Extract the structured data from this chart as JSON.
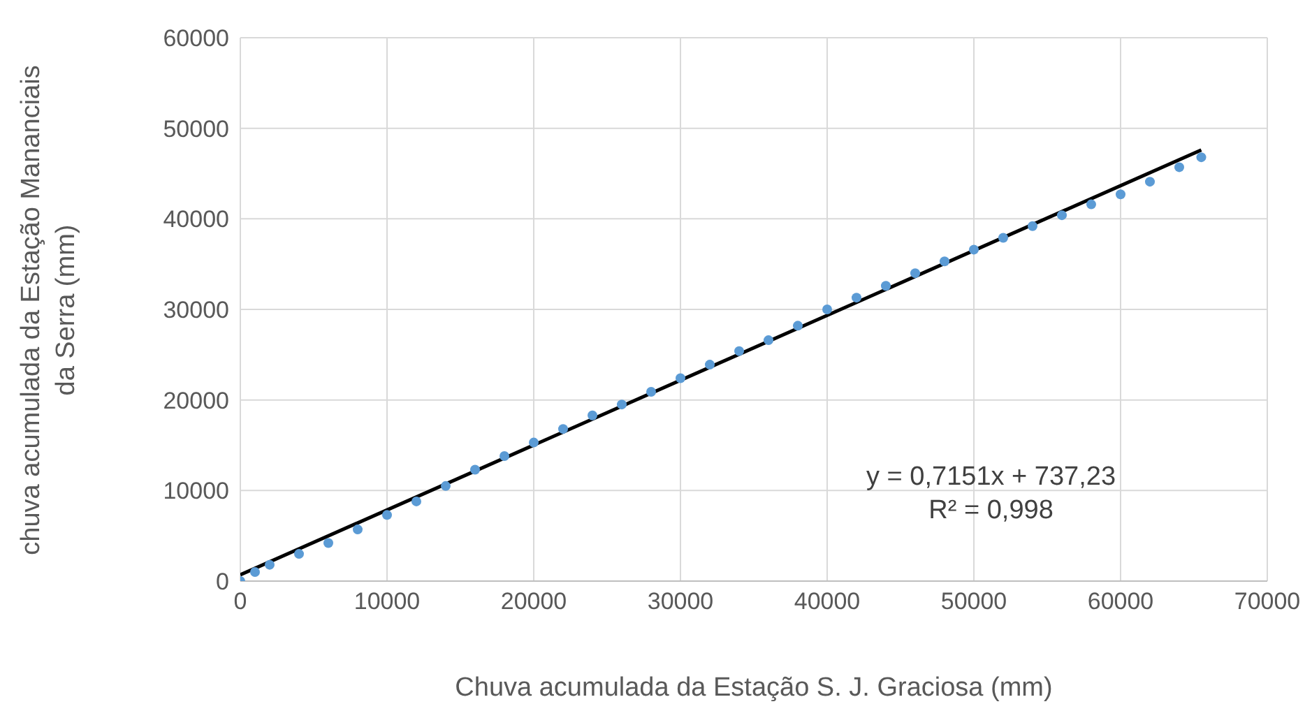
{
  "chart_data": {
    "type": "scatter",
    "xlabel": "Chuva acumulada da Estação S. J. Graciosa (mm)",
    "ylabel": "chuva acumulada da Estação Mananciais da Serra (mm)",
    "annotations": [
      "y = 0,7151x + 737,23",
      "R² = 0,998"
    ],
    "x": [
      0,
      1000,
      2000,
      4000,
      6000,
      8000,
      10000,
      12000,
      14000,
      16000,
      18000,
      20000,
      22000,
      24000,
      26000,
      28000,
      30000,
      32000,
      34000,
      36000,
      38000,
      40000,
      42000,
      44000,
      46000,
      48000,
      50000,
      52000,
      54000,
      56000,
      58000,
      60000,
      62000,
      64000,
      65500
    ],
    "series": [
      {
        "color": "#5b9bd5",
        "marker": "circle",
        "values": [
          0,
          1000,
          1800,
          3000,
          4200,
          5700,
          7300,
          8800,
          10500,
          12300,
          13800,
          15300,
          16800,
          18300,
          19500,
          20900,
          22400,
          23900,
          25400,
          26600,
          28200,
          30000,
          31300,
          32600,
          34000,
          35300,
          36600,
          37900,
          39200,
          40400,
          41600,
          42700,
          44100,
          45700,
          46800
        ]
      },
      {
        "type": "line",
        "color": "#000000",
        "marker": "none",
        "x": [
          0,
          65500
        ],
        "values": [
          700,
          47600
        ]
      }
    ],
    "xlim": [
      0,
      70000
    ],
    "xticks": [
      0,
      10000,
      20000,
      30000,
      40000,
      50000,
      60000,
      70000
    ],
    "ylim": [
      0,
      60000
    ],
    "yticks": [
      0,
      10000,
      20000,
      30000,
      40000,
      50000,
      60000
    ],
    "grid": true,
    "line_style": "solid"
  }
}
